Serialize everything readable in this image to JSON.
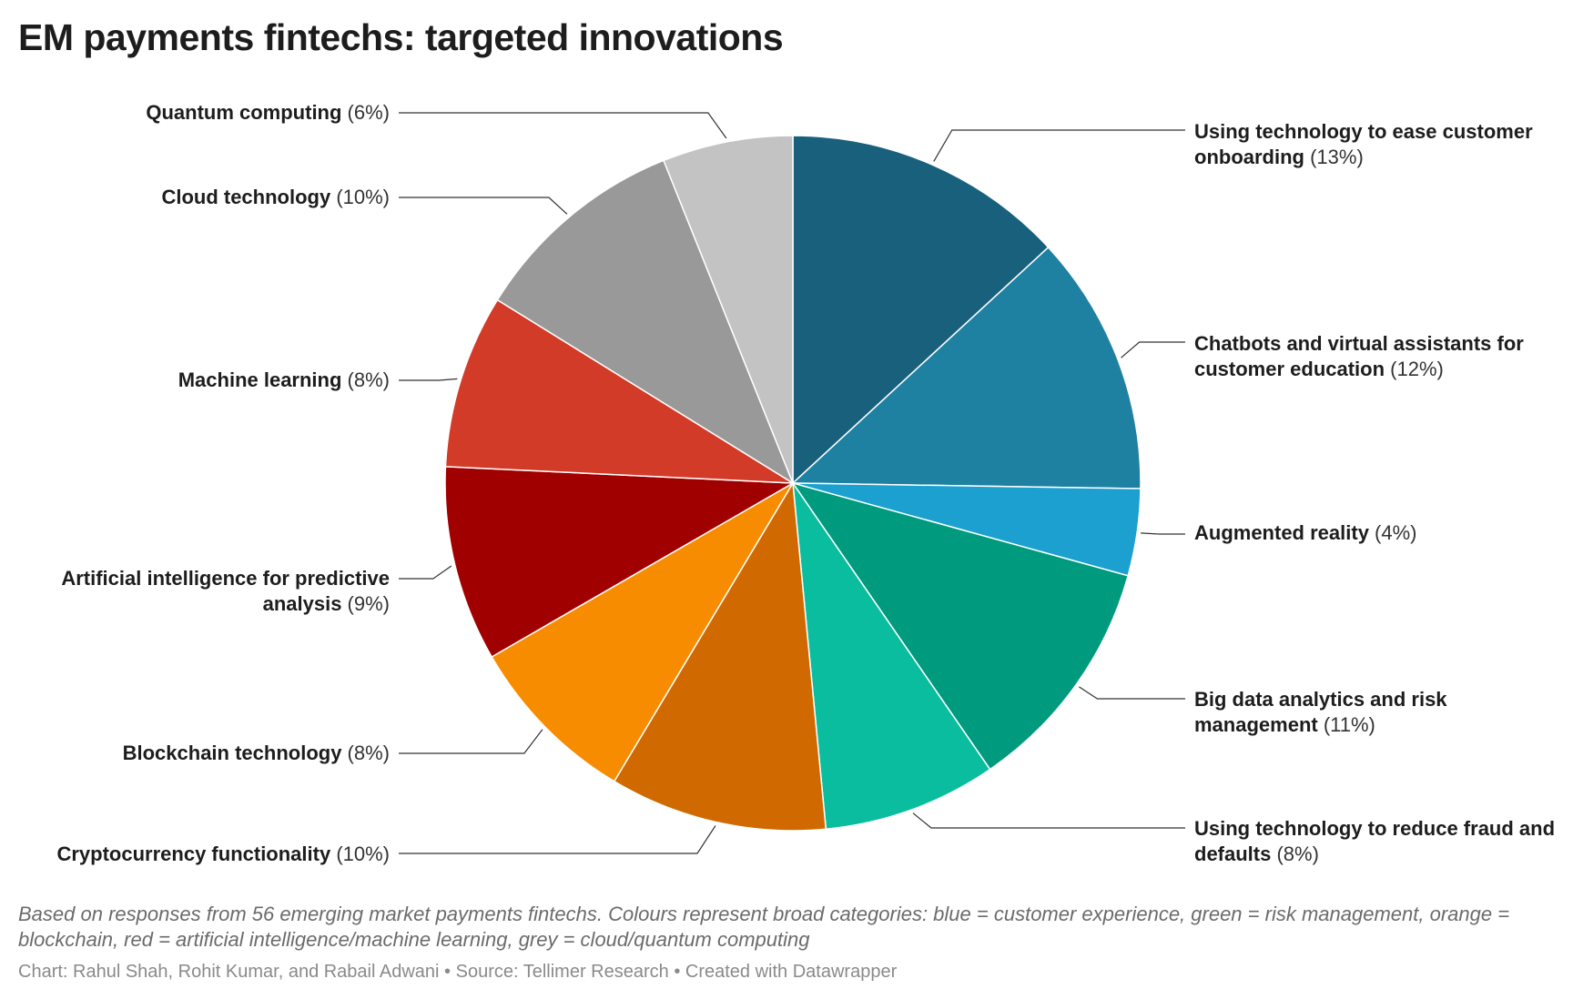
{
  "title": "EM payments fintechs: targeted innovations",
  "notes": "Based on responses from 56 emerging market payments fintechs. Colours represent broad categories: blue = customer experience, green = risk management, orange = blockchain, red = artificial intelligence/machine learning, grey = cloud/quantum computing",
  "byline": "Chart: Rahul Shah, Rohit Kumar, and Rabail Adwani • Source: Tellimer Research • Created with Datawrapper",
  "chart_data": {
    "type": "pie",
    "title": "EM payments fintechs: targeted innovations",
    "unit": "%",
    "slices": [
      {
        "label": "Using technology to ease customer onboarding",
        "value": 13,
        "display": "(13%)",
        "color": "#19607c",
        "category": "customer experience"
      },
      {
        "label": "Chatbots and virtual assistants for customer education",
        "value": 12,
        "display": "(12%)",
        "color": "#1f81a2",
        "category": "customer experience"
      },
      {
        "label": "Augmented reality",
        "value": 4,
        "display": "(4%)",
        "color": "#1ba0cf",
        "category": "customer experience"
      },
      {
        "label": "Big data analytics and risk management",
        "value": 11,
        "display": "(11%)",
        "color": "#009a7e",
        "category": "risk management"
      },
      {
        "label": "Using technology to reduce fraud and defaults",
        "value": 8,
        "display": "(8%)",
        "color": "#0bbd9f",
        "category": "risk management"
      },
      {
        "label": "Cryptocurrency functionality",
        "value": 10,
        "display": "(10%)",
        "color": "#d06a00",
        "category": "blockchain"
      },
      {
        "label": "Blockchain technology",
        "value": 8,
        "display": "(8%)",
        "color": "#f88c00",
        "category": "blockchain"
      },
      {
        "label": "Artificial intelligence for predictive analysis",
        "value": 9,
        "display": "(9%)",
        "color": "#a10000",
        "category": "artificial intelligence/machine learning"
      },
      {
        "label": "Machine learning",
        "value": 8,
        "display": "(8%)",
        "color": "#d23b28",
        "category": "artificial intelligence/machine learning"
      },
      {
        "label": "Cloud technology",
        "value": 10,
        "display": "(10%)",
        "color": "#999999",
        "category": "cloud/quantum computing"
      },
      {
        "label": "Quantum computing",
        "value": 6,
        "display": "(6%)",
        "color": "#c3c3c3",
        "category": "cloud/quantum computing"
      }
    ]
  }
}
